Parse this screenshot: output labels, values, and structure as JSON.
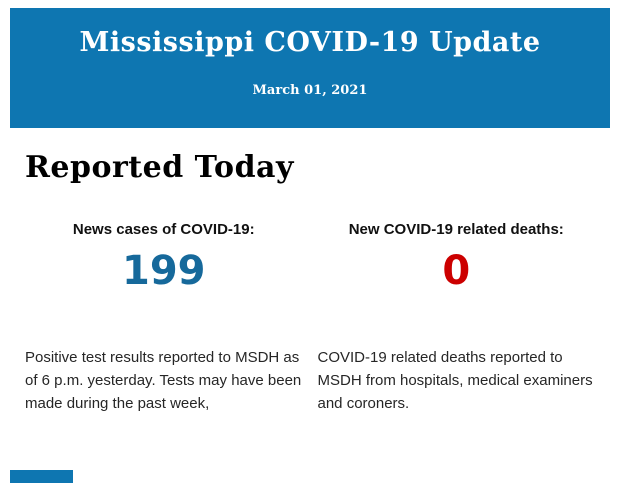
{
  "header": {
    "title": "Mississippi COVID-19 Update",
    "date": "March 01, 2021"
  },
  "section": {
    "heading": "Reported Today"
  },
  "stats": {
    "cases": {
      "label": "News cases of COVID-19:",
      "value": "199",
      "description": "Positive test results reported to MSDH as of 6 p.m. yesterday. Tests may have been made during the past week,"
    },
    "deaths": {
      "label": "New COVID-19 related deaths:",
      "value": "0",
      "description": "COVID-19 related deaths reported to MSDH from hospitals, medical examiners and coroners."
    }
  },
  "colors": {
    "header_bg": "#0e76b1",
    "cases_value": "#16699b",
    "deaths_value": "#cc0000"
  }
}
